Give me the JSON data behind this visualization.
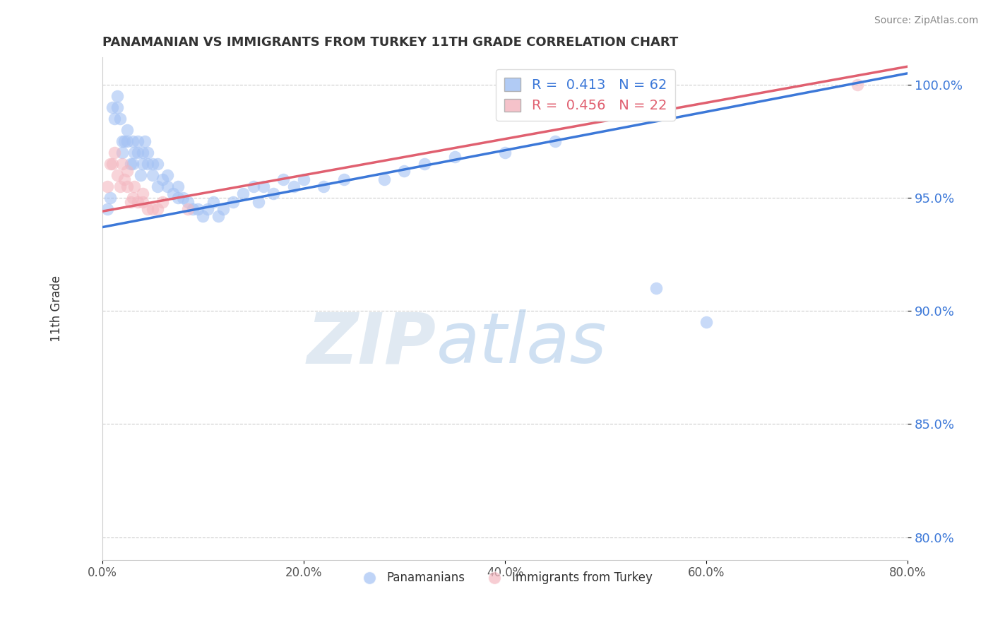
{
  "title": "PANAMANIAN VS IMMIGRANTS FROM TURKEY 11TH GRADE CORRELATION CHART",
  "source_text": "Source: ZipAtlas.com",
  "ylabel": "11th Grade",
  "xlim": [
    0.0,
    0.8
  ],
  "ylim": [
    0.79,
    1.012
  ],
  "xtick_labels": [
    "0.0%",
    "20.0%",
    "40.0%",
    "60.0%",
    "80.0%"
  ],
  "xtick_vals": [
    0.0,
    0.2,
    0.4,
    0.6,
    0.8
  ],
  "ytick_labels": [
    "80.0%",
    "85.0%",
    "90.0%",
    "95.0%",
    "100.0%"
  ],
  "ytick_vals": [
    0.8,
    0.85,
    0.9,
    0.95,
    1.0
  ],
  "blue_color": "#a4c2f4",
  "pink_color": "#f4b8c1",
  "blue_line_color": "#3c78d8",
  "pink_line_color": "#e06070",
  "blue_scatter_x": [
    0.005,
    0.008,
    0.01,
    0.012,
    0.015,
    0.015,
    0.018,
    0.02,
    0.02,
    0.022,
    0.025,
    0.025,
    0.028,
    0.03,
    0.03,
    0.032,
    0.035,
    0.035,
    0.038,
    0.04,
    0.04,
    0.042,
    0.045,
    0.045,
    0.05,
    0.05,
    0.055,
    0.055,
    0.06,
    0.065,
    0.065,
    0.07,
    0.075,
    0.075,
    0.08,
    0.085,
    0.09,
    0.095,
    0.1,
    0.105,
    0.11,
    0.115,
    0.12,
    0.13,
    0.14,
    0.15,
    0.155,
    0.16,
    0.17,
    0.18,
    0.19,
    0.2,
    0.22,
    0.24,
    0.28,
    0.3,
    0.32,
    0.35,
    0.4,
    0.45,
    0.55,
    0.6
  ],
  "blue_scatter_y": [
    0.945,
    0.95,
    0.99,
    0.985,
    0.99,
    0.995,
    0.985,
    0.975,
    0.97,
    0.975,
    0.975,
    0.98,
    0.965,
    0.965,
    0.975,
    0.97,
    0.975,
    0.97,
    0.96,
    0.965,
    0.97,
    0.975,
    0.965,
    0.97,
    0.96,
    0.965,
    0.955,
    0.965,
    0.958,
    0.955,
    0.96,
    0.952,
    0.95,
    0.955,
    0.95,
    0.948,
    0.945,
    0.945,
    0.942,
    0.945,
    0.948,
    0.942,
    0.945,
    0.948,
    0.952,
    0.955,
    0.948,
    0.955,
    0.952,
    0.958,
    0.955,
    0.958,
    0.955,
    0.958,
    0.958,
    0.962,
    0.965,
    0.968,
    0.97,
    0.975,
    0.91,
    0.895
  ],
  "pink_scatter_x": [
    0.005,
    0.008,
    0.01,
    0.012,
    0.015,
    0.018,
    0.02,
    0.022,
    0.025,
    0.025,
    0.028,
    0.03,
    0.032,
    0.035,
    0.04,
    0.04,
    0.045,
    0.05,
    0.055,
    0.06,
    0.085,
    0.75
  ],
  "pink_scatter_y": [
    0.955,
    0.965,
    0.965,
    0.97,
    0.96,
    0.955,
    0.965,
    0.958,
    0.955,
    0.962,
    0.948,
    0.95,
    0.955,
    0.948,
    0.948,
    0.952,
    0.945,
    0.945,
    0.945,
    0.948,
    0.945,
    1.0
  ],
  "blue_trendline_x": [
    0.0,
    0.8
  ],
  "blue_trendline_y": [
    0.937,
    1.005
  ],
  "pink_trendline_x": [
    0.0,
    0.8
  ],
  "pink_trendline_y": [
    0.944,
    1.008
  ],
  "watermark_zip": "ZIP",
  "watermark_atlas": "atlas"
}
